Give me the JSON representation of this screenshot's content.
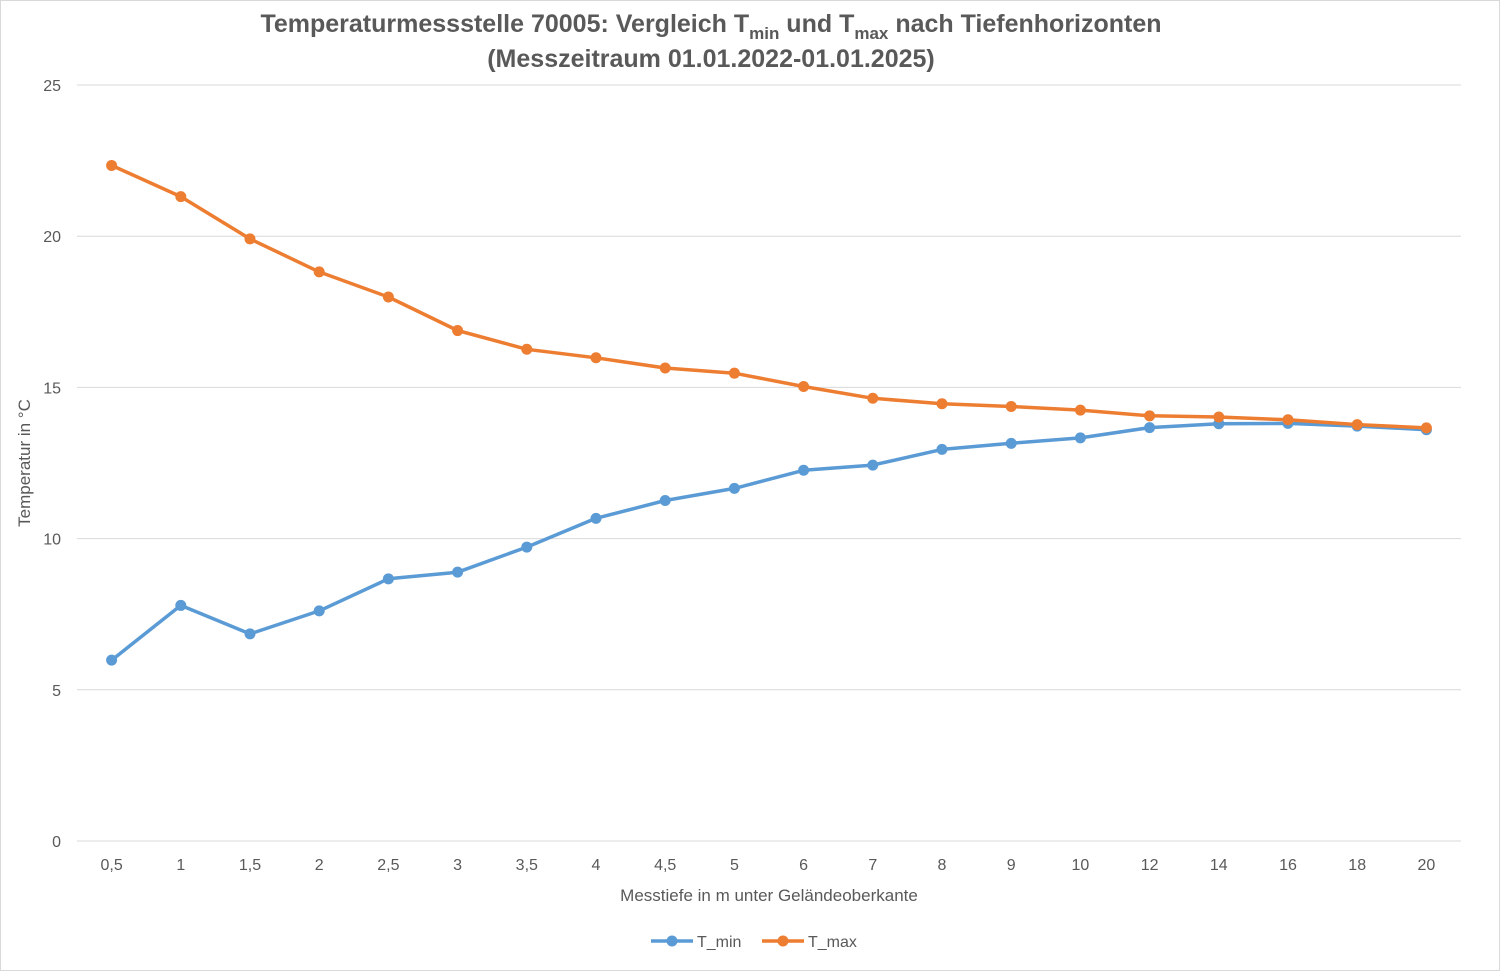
{
  "chart_data": {
    "type": "line",
    "title": {
      "line1_prefix": "Temperaturmessstelle 70005: Vergleich T",
      "line1_sub1": "min",
      "line1_mid": " und T",
      "line1_sub2": "max",
      "line1_suffix": " nach Tiefenhorizonten",
      "line2": "(Messzeitraum 01.01.2022-01.01.2025)"
    },
    "xlabel": "Messtiefe in m unter Geländeoberkante",
    "ylabel": "Temperatur in °C",
    "categories": [
      "0,5",
      "1",
      "1,5",
      "2",
      "2,5",
      "3",
      "3,5",
      "4",
      "4,5",
      "5",
      "6",
      "7",
      "8",
      "9",
      "10",
      "12",
      "14",
      "16",
      "18",
      "20"
    ],
    "ylim": [
      0,
      25
    ],
    "yticks": [
      0,
      5,
      10,
      15,
      20,
      25
    ],
    "grid": true,
    "legend_position": "bottom",
    "series": [
      {
        "name": "T_min",
        "color": "#5b9bd5",
        "values": [
          5.98,
          7.79,
          6.85,
          7.61,
          8.67,
          8.89,
          9.72,
          10.67,
          11.26,
          11.66,
          12.26,
          12.43,
          12.95,
          13.15,
          13.33,
          13.67,
          13.8,
          13.81,
          13.72,
          13.6
        ]
      },
      {
        "name": "T_max",
        "color": "#ed7d31",
        "values": [
          22.34,
          21.31,
          19.91,
          18.82,
          17.99,
          16.88,
          16.26,
          15.98,
          15.64,
          15.47,
          15.03,
          14.64,
          14.46,
          14.37,
          14.25,
          14.06,
          14.02,
          13.93,
          13.77,
          13.66
        ]
      }
    ]
  }
}
